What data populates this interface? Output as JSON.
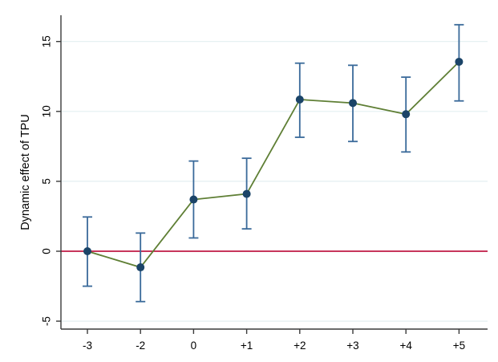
{
  "chart_data": {
    "type": "scatter",
    "subtype": "event-study with error bars",
    "title": "",
    "xlabel": "",
    "ylabel": "Dynamic effect of TPU",
    "categories": [
      "-3",
      "-2",
      "0",
      "+1",
      "+2",
      "+3",
      "+4",
      "+5"
    ],
    "series": [
      {
        "name": "Dynamic effect of TPU",
        "values": [
          0.0,
          -1.15,
          3.7,
          4.1,
          10.85,
          10.6,
          9.8,
          13.55
        ],
        "ci_low": [
          -2.5,
          -3.6,
          0.95,
          1.6,
          8.15,
          7.85,
          7.1,
          10.75
        ],
        "ci_high": [
          2.45,
          1.3,
          6.45,
          6.65,
          13.45,
          13.3,
          12.45,
          16.2
        ]
      }
    ],
    "yticks": [
      -5,
      0,
      5,
      10,
      15
    ],
    "ytick_labels": [
      "-5",
      "0",
      "5",
      "10",
      "15"
    ],
    "ylim": [
      -5.6,
      16.9
    ],
    "ref_line_y": 0,
    "grid": true,
    "legend_position": "none",
    "marker": "filled-circle",
    "colors": {
      "marker": "#1b4468",
      "ci_bar": "#3a6a9a",
      "connect_line": "#5f7f35",
      "ref_line": "#c01a45",
      "gridline": "#e3eff1",
      "axis": "#3a3a3a",
      "text": "#000000",
      "background": "#ffffff"
    }
  }
}
